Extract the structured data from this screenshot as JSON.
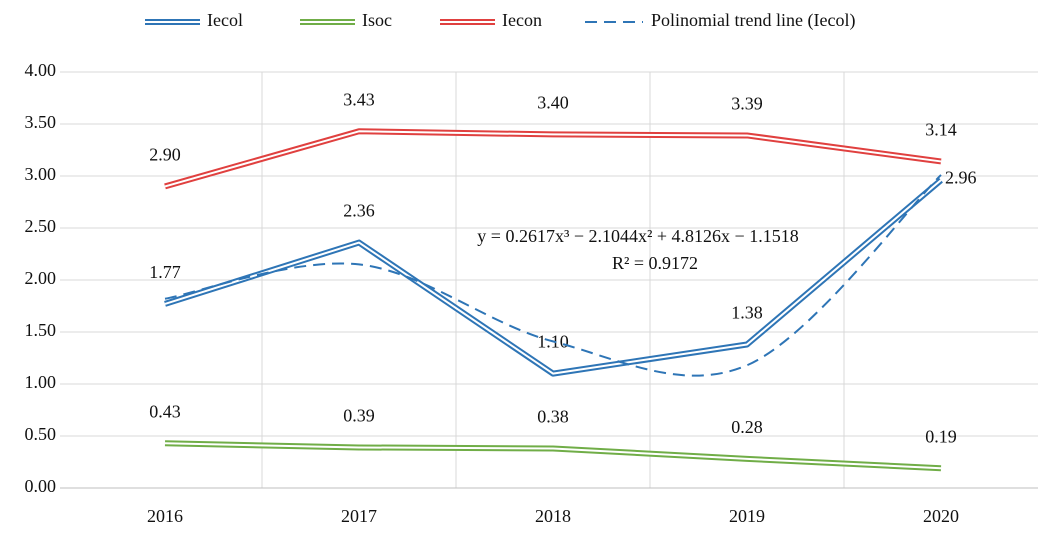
{
  "chart_data": {
    "type": "line",
    "categories": [
      "2016",
      "2017",
      "2018",
      "2019",
      "2020"
    ],
    "series": [
      {
        "name": "Iecol",
        "color": "#2e75b6",
        "style": "double",
        "values": [
          1.77,
          2.36,
          1.1,
          1.38,
          2.96
        ],
        "value_labels": [
          "1.77",
          "2.36",
          "1.10",
          "1.38",
          "2.96"
        ]
      },
      {
        "name": "Isoc",
        "color": "#70ad47",
        "style": "double",
        "values": [
          0.43,
          0.39,
          0.38,
          0.28,
          0.19
        ],
        "value_labels": [
          "0.43",
          "0.39",
          "0.38",
          "0.28",
          "0.19"
        ]
      },
      {
        "name": "Iecon",
        "color": "#e0403f",
        "style": "double",
        "values": [
          2.9,
          3.43,
          3.4,
          3.39,
          3.14
        ],
        "value_labels": [
          "2.90",
          "3.43",
          "3.40",
          "3.39",
          "3.14"
        ]
      },
      {
        "name": "Polinomial trend line (Iecol)",
        "color": "#2e75b6",
        "style": "dashed",
        "values": [
          1.82,
          2.15,
          1.41,
          1.18,
          3.01
        ]
      }
    ],
    "ylim": [
      0,
      4
    ],
    "yticks": [
      {
        "value": 0,
        "label": "0.00"
      },
      {
        "value": 0.5,
        "label": "0.50"
      },
      {
        "value": 1,
        "label": "1.00"
      },
      {
        "value": 1.5,
        "label": "1.50"
      },
      {
        "value": 2,
        "label": "2.00"
      },
      {
        "value": 2.5,
        "label": "2.50"
      },
      {
        "value": 3,
        "label": "3.00"
      },
      {
        "value": 3.5,
        "label": "3.50"
      },
      {
        "value": 4,
        "label": "4.00"
      }
    ],
    "grid": true,
    "legend": "top",
    "annotations": [
      "y = 0.2617x³ − 2.1044x² + 4.8126x − 1.1518",
      "R² = 0.9172"
    ]
  }
}
